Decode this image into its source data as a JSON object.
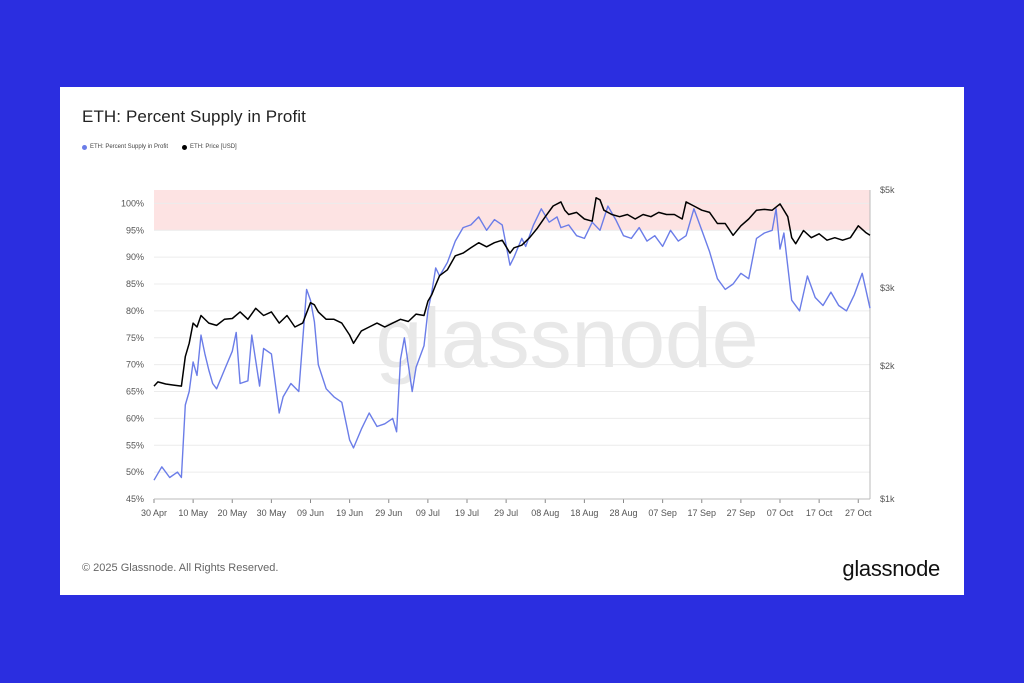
{
  "header": {
    "title": "ETH: Percent Supply in Profit"
  },
  "footer": {
    "copyright": "© 2025 Glassnode. All Rights Reserved.",
    "brand": "glassnode"
  },
  "watermark": "glassnode",
  "colors": {
    "background": "#2b2ee0",
    "supply_line": "#6b7de8",
    "price_line": "#000000",
    "band": "#fde3e3"
  },
  "chart_data": {
    "type": "line",
    "title": "ETH: Percent Supply in Profit",
    "legend": [
      "ETH: Percent Supply in Profit",
      "ETH: Price [USD]"
    ],
    "legend_position": "top-left",
    "grid": true,
    "x_tick_labels": [
      "30 Apr",
      "10 May",
      "20 May",
      "30 May",
      "09 Jun",
      "19 Jun",
      "29 Jun",
      "09 Jul",
      "19 Jul",
      "29 Jul",
      "08 Aug",
      "18 Aug",
      "28 Aug",
      "07 Sep",
      "17 Sep",
      "27 Sep",
      "07 Oct",
      "17 Oct",
      "27 Oct"
    ],
    "y_left": {
      "ticks": [
        "45%",
        "50%",
        "55%",
        "60%",
        "65%",
        "70%",
        "75%",
        "80%",
        "85%",
        "90%",
        "95%",
        "100%"
      ],
      "range": [
        45,
        102.5
      ],
      "unit": "%"
    },
    "y_right": {
      "ticks": [
        "$1k",
        "$2k",
        "$3k",
        "$5k"
      ],
      "tick_values": [
        1000,
        2000,
        3000,
        5000
      ],
      "range": [
        1000,
        5000
      ],
      "scale": "log"
    },
    "highlight_band": [
      95,
      102.5
    ],
    "x_start": "2025-04-30",
    "series": [
      {
        "name": "ETH: Percent Supply in Profit",
        "color": "#6b7de8",
        "axis": "left",
        "dates": [
          "2025-04-30",
          "2025-05-02",
          "2025-05-04",
          "2025-05-06",
          "2025-05-07",
          "2025-05-08",
          "2025-05-09",
          "2025-05-10",
          "2025-05-11",
          "2025-05-12",
          "2025-05-13",
          "2025-05-14",
          "2025-05-15",
          "2025-05-16",
          "2025-05-18",
          "2025-05-20",
          "2025-05-21",
          "2025-05-22",
          "2025-05-24",
          "2025-05-25",
          "2025-05-27",
          "2025-05-28",
          "2025-05-30",
          "2025-06-01",
          "2025-06-02",
          "2025-06-04",
          "2025-06-06",
          "2025-06-08",
          "2025-06-09",
          "2025-06-10",
          "2025-06-11",
          "2025-06-13",
          "2025-06-15",
          "2025-06-17",
          "2025-06-19",
          "2025-06-20",
          "2025-06-22",
          "2025-06-24",
          "2025-06-26",
          "2025-06-28",
          "2025-06-30",
          "2025-07-01",
          "2025-07-02",
          "2025-07-03",
          "2025-07-05",
          "2025-07-06",
          "2025-07-08",
          "2025-07-09",
          "2025-07-10",
          "2025-07-11",
          "2025-07-12",
          "2025-07-14",
          "2025-07-16",
          "2025-07-18",
          "2025-07-20",
          "2025-07-22",
          "2025-07-24",
          "2025-07-26",
          "2025-07-28",
          "2025-07-30",
          "2025-07-31",
          "2025-08-02",
          "2025-08-03",
          "2025-08-05",
          "2025-08-07",
          "2025-08-09",
          "2025-08-11",
          "2025-08-12",
          "2025-08-14",
          "2025-08-16",
          "2025-08-18",
          "2025-08-20",
          "2025-08-22",
          "2025-08-24",
          "2025-08-26",
          "2025-08-28",
          "2025-08-30",
          "2025-09-01",
          "2025-09-03",
          "2025-09-05",
          "2025-09-07",
          "2025-09-09",
          "2025-09-11",
          "2025-09-13",
          "2025-09-15",
          "2025-09-17",
          "2025-09-19",
          "2025-09-21",
          "2025-09-23",
          "2025-09-25",
          "2025-09-27",
          "2025-09-29",
          "2025-10-01",
          "2025-10-03",
          "2025-10-05",
          "2025-10-06",
          "2025-10-07",
          "2025-10-08",
          "2025-10-10",
          "2025-10-12",
          "2025-10-14",
          "2025-10-16",
          "2025-10-18",
          "2025-10-20",
          "2025-10-22",
          "2025-10-24",
          "2025-10-26",
          "2025-10-28",
          "2025-10-30"
        ],
        "values": [
          48.5,
          51.0,
          49.0,
          50.0,
          49.0,
          62.5,
          65.0,
          70.5,
          68.0,
          75.5,
          72.0,
          69.0,
          66.5,
          65.5,
          69.0,
          72.5,
          76.0,
          66.5,
          67.0,
          75.5,
          66.0,
          73.0,
          72.0,
          61.0,
          64.0,
          66.5,
          65.0,
          84.0,
          82.0,
          78.0,
          70.0,
          65.5,
          64.0,
          63.0,
          56.0,
          54.5,
          58.0,
          61.0,
          58.5,
          59.0,
          60.0,
          57.5,
          71.0,
          75.0,
          65.0,
          69.5,
          73.5,
          80.0,
          83.5,
          88.0,
          86.5,
          89.0,
          93.0,
          95.5,
          96.0,
          97.5,
          95.0,
          97.0,
          96.0,
          88.5,
          90.0,
          93.5,
          92.0,
          96.0,
          99.0,
          96.5,
          97.5,
          95.5,
          96.0,
          94.0,
          93.5,
          96.5,
          95.0,
          99.5,
          97.0,
          94.0,
          93.5,
          95.5,
          93.0,
          94.0,
          92.0,
          95.0,
          93.0,
          94.0,
          99.0,
          95.0,
          91.0,
          86.0,
          84.0,
          85.0,
          87.0,
          86.0,
          93.5,
          94.5,
          95.0,
          99.0,
          91.5,
          94.5,
          82.0,
          80.0,
          86.5,
          82.5,
          81.0,
          83.5,
          81.0,
          80.0,
          83.0,
          87.0,
          80.5
        ]
      },
      {
        "name": "ETH: Price [USD]",
        "color": "#000000",
        "axis": "right",
        "dates": [
          "2025-04-30",
          "2025-05-01",
          "2025-05-03",
          "2025-05-05",
          "2025-05-07",
          "2025-05-08",
          "2025-05-09",
          "2025-05-10",
          "2025-05-11",
          "2025-05-12",
          "2025-05-14",
          "2025-05-16",
          "2025-05-18",
          "2025-05-20",
          "2025-05-22",
          "2025-05-24",
          "2025-05-26",
          "2025-05-28",
          "2025-05-30",
          "2025-06-01",
          "2025-06-03",
          "2025-06-05",
          "2025-06-07",
          "2025-06-09",
          "2025-06-10",
          "2025-06-11",
          "2025-06-13",
          "2025-06-15",
          "2025-06-17",
          "2025-06-19",
          "2025-06-20",
          "2025-06-22",
          "2025-06-24",
          "2025-06-26",
          "2025-06-28",
          "2025-06-30",
          "2025-07-02",
          "2025-07-04",
          "2025-07-06",
          "2025-07-08",
          "2025-07-09",
          "2025-07-10",
          "2025-07-11",
          "2025-07-12",
          "2025-07-14",
          "2025-07-16",
          "2025-07-18",
          "2025-07-20",
          "2025-07-22",
          "2025-07-24",
          "2025-07-26",
          "2025-07-28",
          "2025-07-30",
          "2025-07-31",
          "2025-08-02",
          "2025-08-04",
          "2025-08-06",
          "2025-08-08",
          "2025-08-10",
          "2025-08-12",
          "2025-08-13",
          "2025-08-14",
          "2025-08-16",
          "2025-08-18",
          "2025-08-20",
          "2025-08-21",
          "2025-08-22",
          "2025-08-23",
          "2025-08-25",
          "2025-08-27",
          "2025-08-29",
          "2025-08-31",
          "2025-09-02",
          "2025-09-04",
          "2025-09-06",
          "2025-09-08",
          "2025-09-10",
          "2025-09-12",
          "2025-09-13",
          "2025-09-15",
          "2025-09-17",
          "2025-09-19",
          "2025-09-21",
          "2025-09-23",
          "2025-09-25",
          "2025-09-27",
          "2025-09-29",
          "2025-10-01",
          "2025-10-03",
          "2025-10-05",
          "2025-10-07",
          "2025-10-09",
          "2025-10-10",
          "2025-10-11",
          "2025-10-13",
          "2025-10-15",
          "2025-10-17",
          "2025-10-19",
          "2025-10-21",
          "2025-10-23",
          "2025-10-25",
          "2025-10-27",
          "2025-10-29",
          "2025-10-30"
        ],
        "values": [
          1800,
          1840,
          1820,
          1810,
          1800,
          2100,
          2250,
          2500,
          2450,
          2600,
          2500,
          2470,
          2550,
          2560,
          2650,
          2550,
          2700,
          2600,
          2650,
          2500,
          2600,
          2450,
          2500,
          2780,
          2750,
          2650,
          2550,
          2550,
          2500,
          2350,
          2250,
          2400,
          2450,
          2500,
          2450,
          2500,
          2550,
          2520,
          2620,
          2600,
          2800,
          2900,
          3050,
          3200,
          3300,
          3550,
          3600,
          3700,
          3800,
          3720,
          3800,
          3850,
          3600,
          3700,
          3750,
          3900,
          4100,
          4350,
          4600,
          4700,
          4500,
          4400,
          4450,
          4300,
          4250,
          4800,
          4750,
          4500,
          4400,
          4350,
          4400,
          4300,
          4400,
          4350,
          4450,
          4400,
          4400,
          4300,
          4700,
          4600,
          4500,
          4450,
          4200,
          4200,
          3950,
          4150,
          4300,
          4500,
          4520,
          4500,
          4650,
          4350,
          3900,
          3780,
          4050,
          3900,
          3980,
          3850,
          3900,
          3850,
          3900,
          4150,
          4000,
          3950
        ]
      }
    ]
  }
}
